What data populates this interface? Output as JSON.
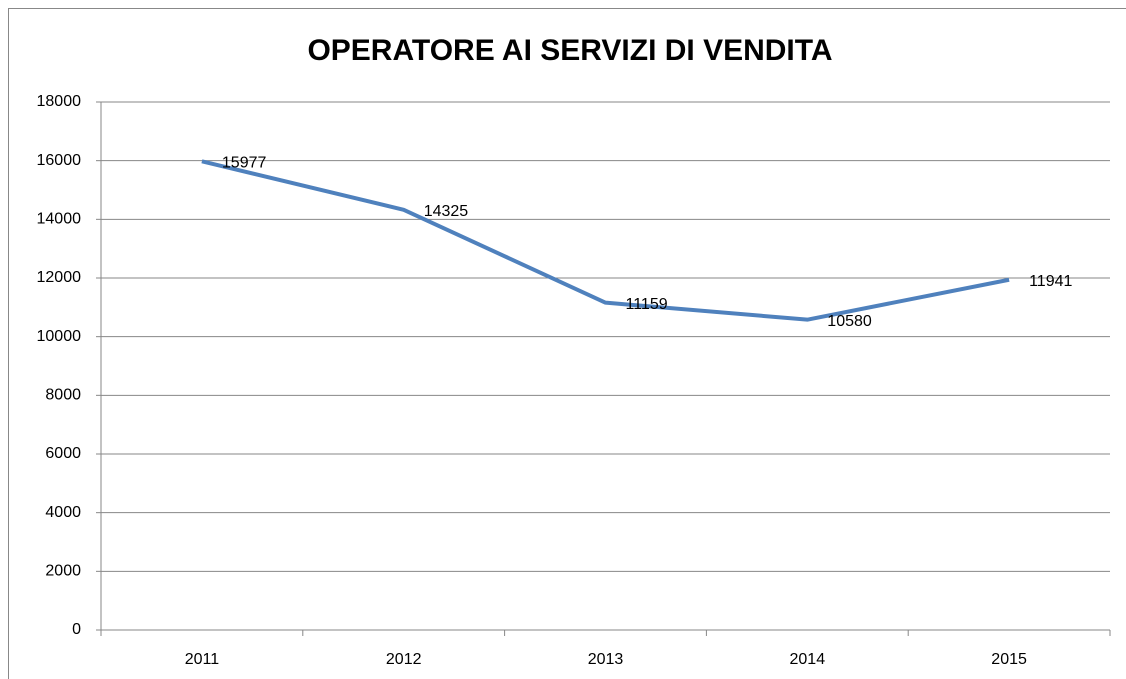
{
  "chart_data": {
    "type": "line",
    "title": "OPERATORE AI SERVIZI DI VENDITA",
    "categories": [
      "2011",
      "2012",
      "2013",
      "2014",
      "2015"
    ],
    "series": [
      {
        "name": null,
        "color": "#4f81bd",
        "values": [
          15977,
          14325,
          11159,
          10580,
          11941
        ]
      }
    ],
    "ylim": [
      0,
      18000
    ],
    "yticks": [
      0,
      2000,
      4000,
      6000,
      8000,
      10000,
      12000,
      14000,
      16000,
      18000
    ],
    "grid": true
  }
}
